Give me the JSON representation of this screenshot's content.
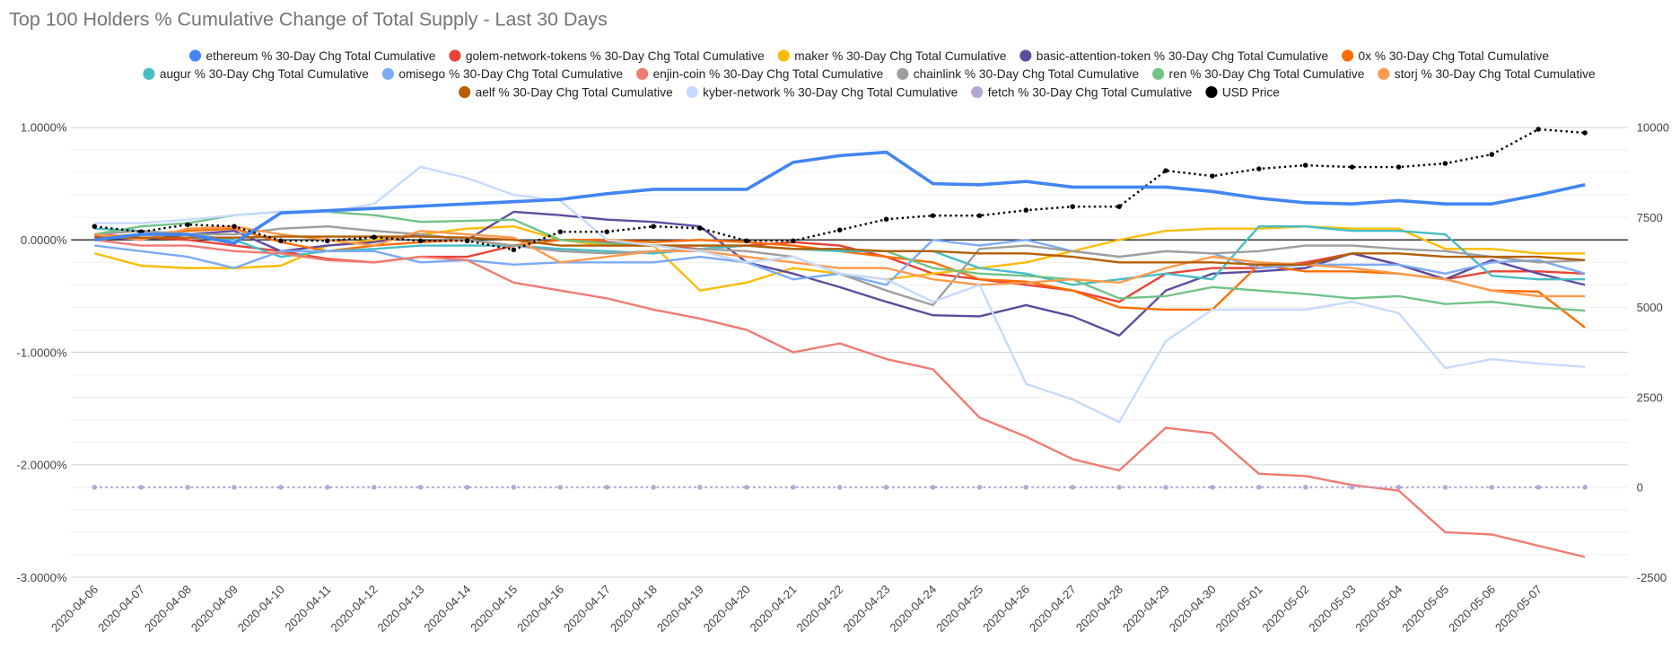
{
  "chart_data": {
    "type": "line",
    "title": "Top 100 Holders % Cumulative Change of Total Supply - Last 30 Days",
    "categories": [
      "2020-04-06",
      "2020-04-07",
      "2020-04-08",
      "2020-04-09",
      "2020-04-10",
      "2020-04-11",
      "2020-04-12",
      "2020-04-13",
      "2020-04-14",
      "2020-04-15",
      "2020-04-16",
      "2020-04-17",
      "2020-04-18",
      "2020-04-19",
      "2020-04-20",
      "2020-04-21",
      "2020-04-22",
      "2020-04-23",
      "2020-04-24",
      "2020-04-25",
      "2020-04-26",
      "2020-04-27",
      "2020-04-28",
      "2020-04-29",
      "2020-04-30",
      "2020-05-01",
      "2020-05-02",
      "2020-05-03",
      "2020-05-04",
      "2020-05-05",
      "2020-05-06",
      "2020-05-07",
      null
    ],
    "ylim": [
      -3,
      1
    ],
    "yticks": [
      {
        "value": 1,
        "label": "1.0000%"
      },
      {
        "value": 0,
        "label": "0.0000%"
      },
      {
        "value": -1,
        "label": "-1.0000%"
      },
      {
        "value": -2,
        "label": "-2.0000%"
      },
      {
        "value": -3,
        "label": "-3.0000%"
      }
    ],
    "y2lim": [
      -2500,
      10000
    ],
    "y2ticks": [
      10000,
      7500,
      5000,
      2500,
      0,
      -2500
    ],
    "grid": true,
    "legend": "top",
    "series": [
      {
        "name": "ethereum % 30-Day Chg Total Cumulative",
        "color": "#4285f4",
        "values": [
          0.0,
          0.05,
          0.05,
          -0.03,
          0.24,
          0.26,
          0.28,
          0.3,
          0.32,
          0.34,
          0.36,
          0.41,
          0.45,
          0.45,
          0.45,
          0.69,
          0.75,
          0.78,
          0.5,
          0.49,
          0.52,
          0.47,
          0.47,
          0.47,
          0.43,
          0.37,
          0.33,
          0.32,
          0.35,
          0.32,
          0.32,
          0.4,
          0.49
        ]
      },
      {
        "name": "golem-network-tokens % 30-Day Chg Total Cumulative",
        "color": "#ea4335",
        "values": [
          0.05,
          0.02,
          0.0,
          -0.05,
          -0.1,
          -0.17,
          -0.2,
          -0.15,
          -0.15,
          -0.05,
          0.0,
          -0.02,
          -0.05,
          -0.08,
          -0.05,
          -0.02,
          -0.05,
          -0.15,
          -0.3,
          -0.35,
          -0.4,
          -0.45,
          -0.55,
          -0.3,
          -0.25,
          -0.25,
          -0.2,
          -0.12,
          -0.22,
          -0.35,
          -0.28,
          -0.28,
          -0.3
        ]
      },
      {
        "name": "maker % 30-Day Chg Total Cumulative",
        "color": "#fbbc04",
        "values": [
          -0.12,
          -0.23,
          -0.25,
          -0.25,
          -0.23,
          -0.05,
          0.0,
          0.05,
          0.1,
          0.12,
          0.0,
          -0.05,
          -0.05,
          -0.45,
          -0.38,
          -0.25,
          -0.3,
          -0.35,
          -0.3,
          -0.25,
          -0.2,
          -0.1,
          0.0,
          0.08,
          0.1,
          0.1,
          0.12,
          0.1,
          0.1,
          -0.08,
          -0.08,
          -0.12,
          -0.12
        ]
      },
      {
        "name": "basic-attention-token % 30-Day Chg Total Cumulative",
        "color": "#5f4b9e",
        "values": [
          0.03,
          0.0,
          0.05,
          0.08,
          -0.1,
          -0.05,
          -0.02,
          0.05,
          0.0,
          0.25,
          0.22,
          0.18,
          0.16,
          0.12,
          -0.2,
          -0.3,
          -0.42,
          -0.55,
          -0.67,
          -0.68,
          -0.58,
          -0.68,
          -0.85,
          -0.45,
          -0.3,
          -0.28,
          -0.25,
          -0.12,
          -0.22,
          -0.35,
          -0.18,
          -0.3,
          -0.4
        ]
      },
      {
        "name": "0x % 30-Day Chg Total Cumulative",
        "color": "#ff6d01",
        "values": [
          0.02,
          0.05,
          0.08,
          0.1,
          -0.02,
          -0.1,
          -0.05,
          -0.02,
          0.0,
          -0.05,
          0.0,
          0.0,
          -0.02,
          0.0,
          -0.02,
          -0.05,
          -0.1,
          -0.15,
          -0.2,
          -0.35,
          -0.37,
          -0.45,
          -0.6,
          -0.62,
          -0.62,
          -0.22,
          -0.28,
          -0.28,
          -0.3,
          -0.35,
          -0.45,
          -0.46,
          -0.78
        ]
      },
      {
        "name": "augur % 30-Day Chg Total Cumulative",
        "color": "#46bdc6",
        "values": [
          0.1,
          0.08,
          0.05,
          0.0,
          -0.15,
          -0.1,
          -0.08,
          -0.05,
          -0.05,
          -0.05,
          -0.08,
          -0.1,
          -0.12,
          -0.08,
          -0.05,
          -0.08,
          -0.1,
          -0.1,
          -0.1,
          -0.25,
          -0.3,
          -0.4,
          -0.35,
          -0.3,
          -0.35,
          0.12,
          0.12,
          0.08,
          0.08,
          0.05,
          -0.32,
          -0.35,
          -0.35
        ]
      },
      {
        "name": "omisego % 30-Day Chg Total Cumulative",
        "color": "#7baaf7",
        "values": [
          -0.05,
          -0.1,
          -0.15,
          -0.25,
          -0.1,
          -0.1,
          -0.1,
          -0.2,
          -0.18,
          -0.22,
          -0.2,
          -0.2,
          -0.2,
          -0.15,
          -0.2,
          -0.35,
          -0.3,
          -0.4,
          0.0,
          -0.05,
          0.0,
          -0.1,
          -0.15,
          -0.1,
          -0.12,
          -0.25,
          -0.22,
          -0.22,
          -0.22,
          -0.3,
          -0.2,
          -0.18,
          -0.3
        ]
      },
      {
        "name": "enjin-coin % 30-Day Chg Total Cumulative",
        "color": "#f07b72",
        "values": [
          0.0,
          -0.05,
          -0.05,
          -0.1,
          -0.12,
          -0.18,
          -0.2,
          -0.15,
          -0.18,
          -0.38,
          -0.45,
          -0.52,
          -0.62,
          -0.7,
          -0.8,
          -1.0,
          -0.92,
          -1.06,
          -1.15,
          -1.58,
          -1.75,
          -1.95,
          -2.05,
          -1.67,
          -1.72,
          -2.08,
          -2.1,
          -2.18,
          -2.23,
          -2.6,
          -2.62,
          -2.72,
          -2.82
        ]
      },
      {
        "name": "chainlink % 30-Day Chg Total Cumulative",
        "color": "#9e9e9e",
        "values": [
          0.05,
          0.08,
          0.05,
          0.05,
          0.1,
          0.12,
          0.08,
          0.05,
          0.0,
          -0.05,
          -0.1,
          -0.12,
          -0.1,
          -0.08,
          -0.1,
          -0.15,
          -0.3,
          -0.45,
          -0.58,
          -0.08,
          -0.05,
          -0.1,
          -0.15,
          -0.1,
          -0.12,
          -0.1,
          -0.05,
          -0.05,
          -0.08,
          -0.1,
          -0.15,
          -0.2,
          -0.18
        ]
      },
      {
        "name": "ren % 30-Day Chg Total Cumulative",
        "color": "#71c287",
        "values": [
          0.05,
          0.12,
          0.15,
          0.22,
          0.25,
          0.25,
          0.22,
          0.16,
          0.17,
          0.18,
          0.0,
          -0.03,
          -0.05,
          -0.05,
          -0.05,
          -0.08,
          -0.08,
          -0.1,
          -0.25,
          -0.3,
          -0.32,
          -0.35,
          -0.52,
          -0.5,
          -0.42,
          -0.45,
          -0.48,
          -0.52,
          -0.5,
          -0.57,
          -0.55,
          -0.6,
          -0.63
        ]
      },
      {
        "name": "storj % 30-Day Chg Total Cumulative",
        "color": "#ff994d",
        "values": [
          0.05,
          0.0,
          0.1,
          0.12,
          0.05,
          0.0,
          -0.05,
          0.08,
          0.05,
          0.02,
          -0.2,
          -0.15,
          -0.1,
          -0.1,
          -0.15,
          -0.2,
          -0.25,
          -0.25,
          -0.35,
          -0.4,
          -0.38,
          -0.35,
          -0.38,
          -0.25,
          -0.15,
          -0.2,
          -0.22,
          -0.25,
          -0.3,
          -0.35,
          -0.45,
          -0.5,
          -0.5
        ]
      },
      {
        "name": "aelf % 30-Day Chg Total Cumulative",
        "color": "#b45f06",
        "values": [
          0.02,
          0.02,
          0.02,
          0.02,
          0.03,
          0.03,
          0.03,
          0.03,
          0.02,
          0.0,
          -0.05,
          -0.05,
          -0.05,
          -0.05,
          -0.05,
          -0.08,
          -0.08,
          -0.1,
          -0.1,
          -0.12,
          -0.12,
          -0.15,
          -0.2,
          -0.2,
          -0.2,
          -0.22,
          -0.22,
          -0.12,
          -0.12,
          -0.15,
          -0.15,
          -0.15,
          -0.18
        ]
      },
      {
        "name": "kyber-network % 30-Day Chg Total Cumulative",
        "color": "#c6dafc",
        "values": [
          0.15,
          0.15,
          0.18,
          0.22,
          0.25,
          0.25,
          0.32,
          0.65,
          0.55,
          0.4,
          0.35,
          0.0,
          -0.05,
          -0.1,
          -0.2,
          -0.15,
          -0.3,
          -0.35,
          -0.55,
          -0.4,
          -1.28,
          -1.42,
          -1.62,
          -0.9,
          -0.62,
          -0.62,
          -0.62,
          -0.55,
          -0.65,
          -1.14,
          -1.06,
          -1.1,
          -1.13
        ]
      },
      {
        "name": "fetch % 30-Day Chg Total Cumulative",
        "color": "#b4a7d6",
        "axis": "y2",
        "values": [
          0,
          0,
          0,
          0,
          0,
          0,
          0,
          0,
          0,
          0,
          0,
          0,
          0,
          0,
          0,
          0,
          0,
          0,
          0,
          0,
          0,
          0,
          0,
          0,
          0,
          0,
          0,
          0,
          0,
          0,
          0,
          0,
          0
        ]
      },
      {
        "name": "USD Price",
        "color": "#000000",
        "axis": "y2",
        "values": [
          7250,
          7100,
          7300,
          7250,
          6850,
          6850,
          6950,
          6850,
          6850,
          6600,
          7100,
          7100,
          7250,
          7200,
          6850,
          6850,
          7150,
          7450,
          7550,
          7550,
          7700,
          7800,
          7800,
          8800,
          8650,
          8850,
          8950,
          8900,
          8900,
          9000,
          9250,
          9950,
          9850
        ]
      }
    ]
  }
}
